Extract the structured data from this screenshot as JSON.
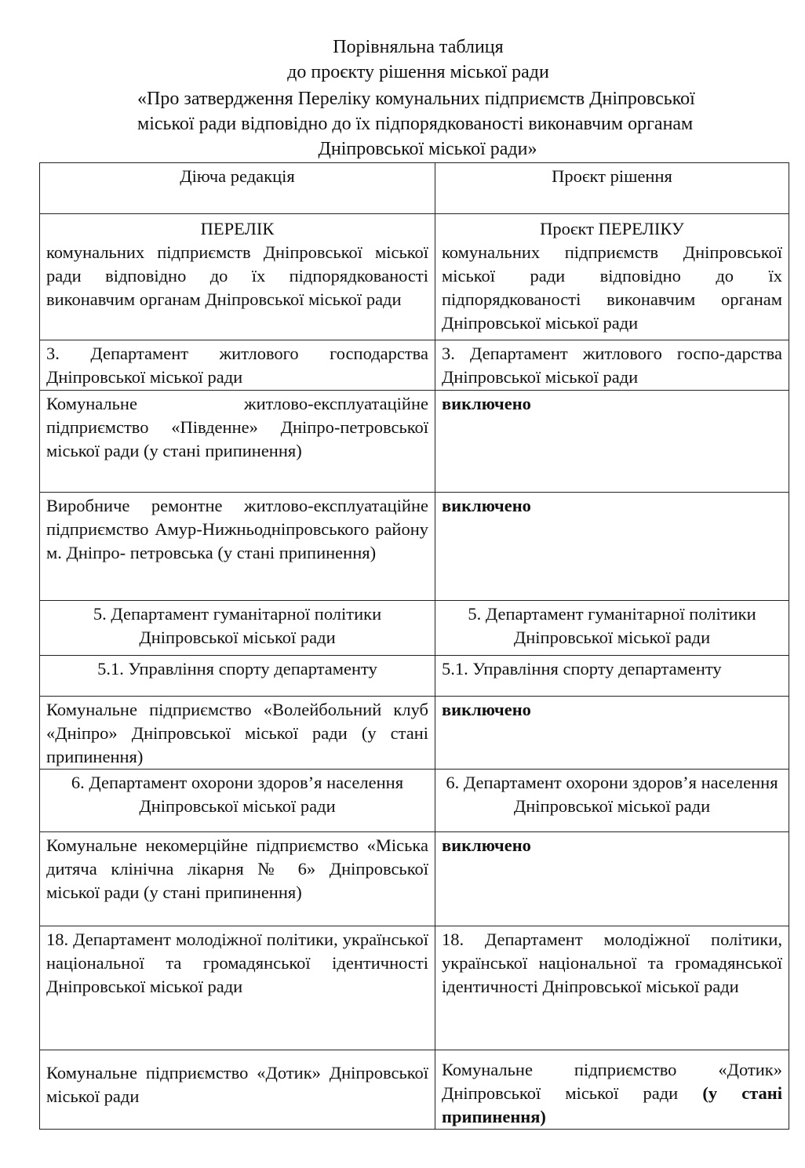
{
  "header": {
    "title": "Порівняльна таблиця",
    "subtitle": "до проєкту рішення міської ради",
    "decision_lines": [
      "«Про затвердження Переліку комунальних підприємств Дніпровської",
      "міської ради відповідно до їх підпорядкованості виконавчим органам",
      "Дніпровської міської ради»"
    ]
  },
  "table": {
    "columns": [
      "Діюча редакція",
      "Проєкт рішення"
    ],
    "list_heading": {
      "left_title": "ПЕРЕЛІК",
      "left_text": "комунальних підприємств Дніпровської міської ради відповідно до їх підпорядкованості виконавчим органам Дніпровської міської ради",
      "right_title": "Проєкт ПЕРЕЛІКУ",
      "right_text": "комунальних підприємств Дніпровської міської ради відповідно до їх підпорядкованості виконавчим органам Дніпровської міської ради"
    },
    "rows": [
      {
        "left": "3. Департамент житлового господарства Дніпровської міської ради",
        "right": "3. Департамент житлового госпо-дарства Дніпровської міської ради"
      },
      {
        "left": "Комунальне житлово-експлуатаційне підприємство «Південне» Дніпро-петровської міської ради (у стані припинення)",
        "right": "виключено"
      },
      {
        "left": "Виробниче ремонтне житлово-експлуатаційне підприємство Амур-Нижньодніпровського району м. Дніпро- петровська (у стані припинення)",
        "right": "виключено"
      },
      {
        "left": "5. Департамент гуманітарної політики Дніпровської міської ради",
        "right": "5. Департамент гуманітарної політики Дніпровської міської ради"
      },
      {
        "left": "5.1. Управління спорту  департаменту",
        "right": "5.1. Управління спорту  департаменту"
      },
      {
        "left": "Комунальне підприємство «Волейбольний клуб «Дніпро» Дніпровської міської ради (у стані припинення)",
        "right": "виключено"
      },
      {
        "left": "6. Департамент охорони здоров’я населення Дніпровської міської ради",
        "right": "6. Департамент охорони здоров’я населення Дніпровської міської ради"
      },
      {
        "left": "Комунальне некомерційне підприємство «Міська дитяча клінічна лікарня № 6» Дніпровської міської ради (у стані припинення)",
        "right": "виключено"
      },
      {
        "left": "18. Департамент молодіжної політики, української національної та громадянської ідентичності Дніпровської міської ради",
        "right": "18. Департамент молодіжної політики, української національної та громадянської ідентичності Дніпровської міської ради"
      },
      {
        "left": "Комунальне підприємство «Дотик» Дніпровської міської ради",
        "right": "Комунальне підприємство «Дотик» Дніпровської міської ради",
        "right_bold": "(у стані припинення)"
      }
    ]
  }
}
